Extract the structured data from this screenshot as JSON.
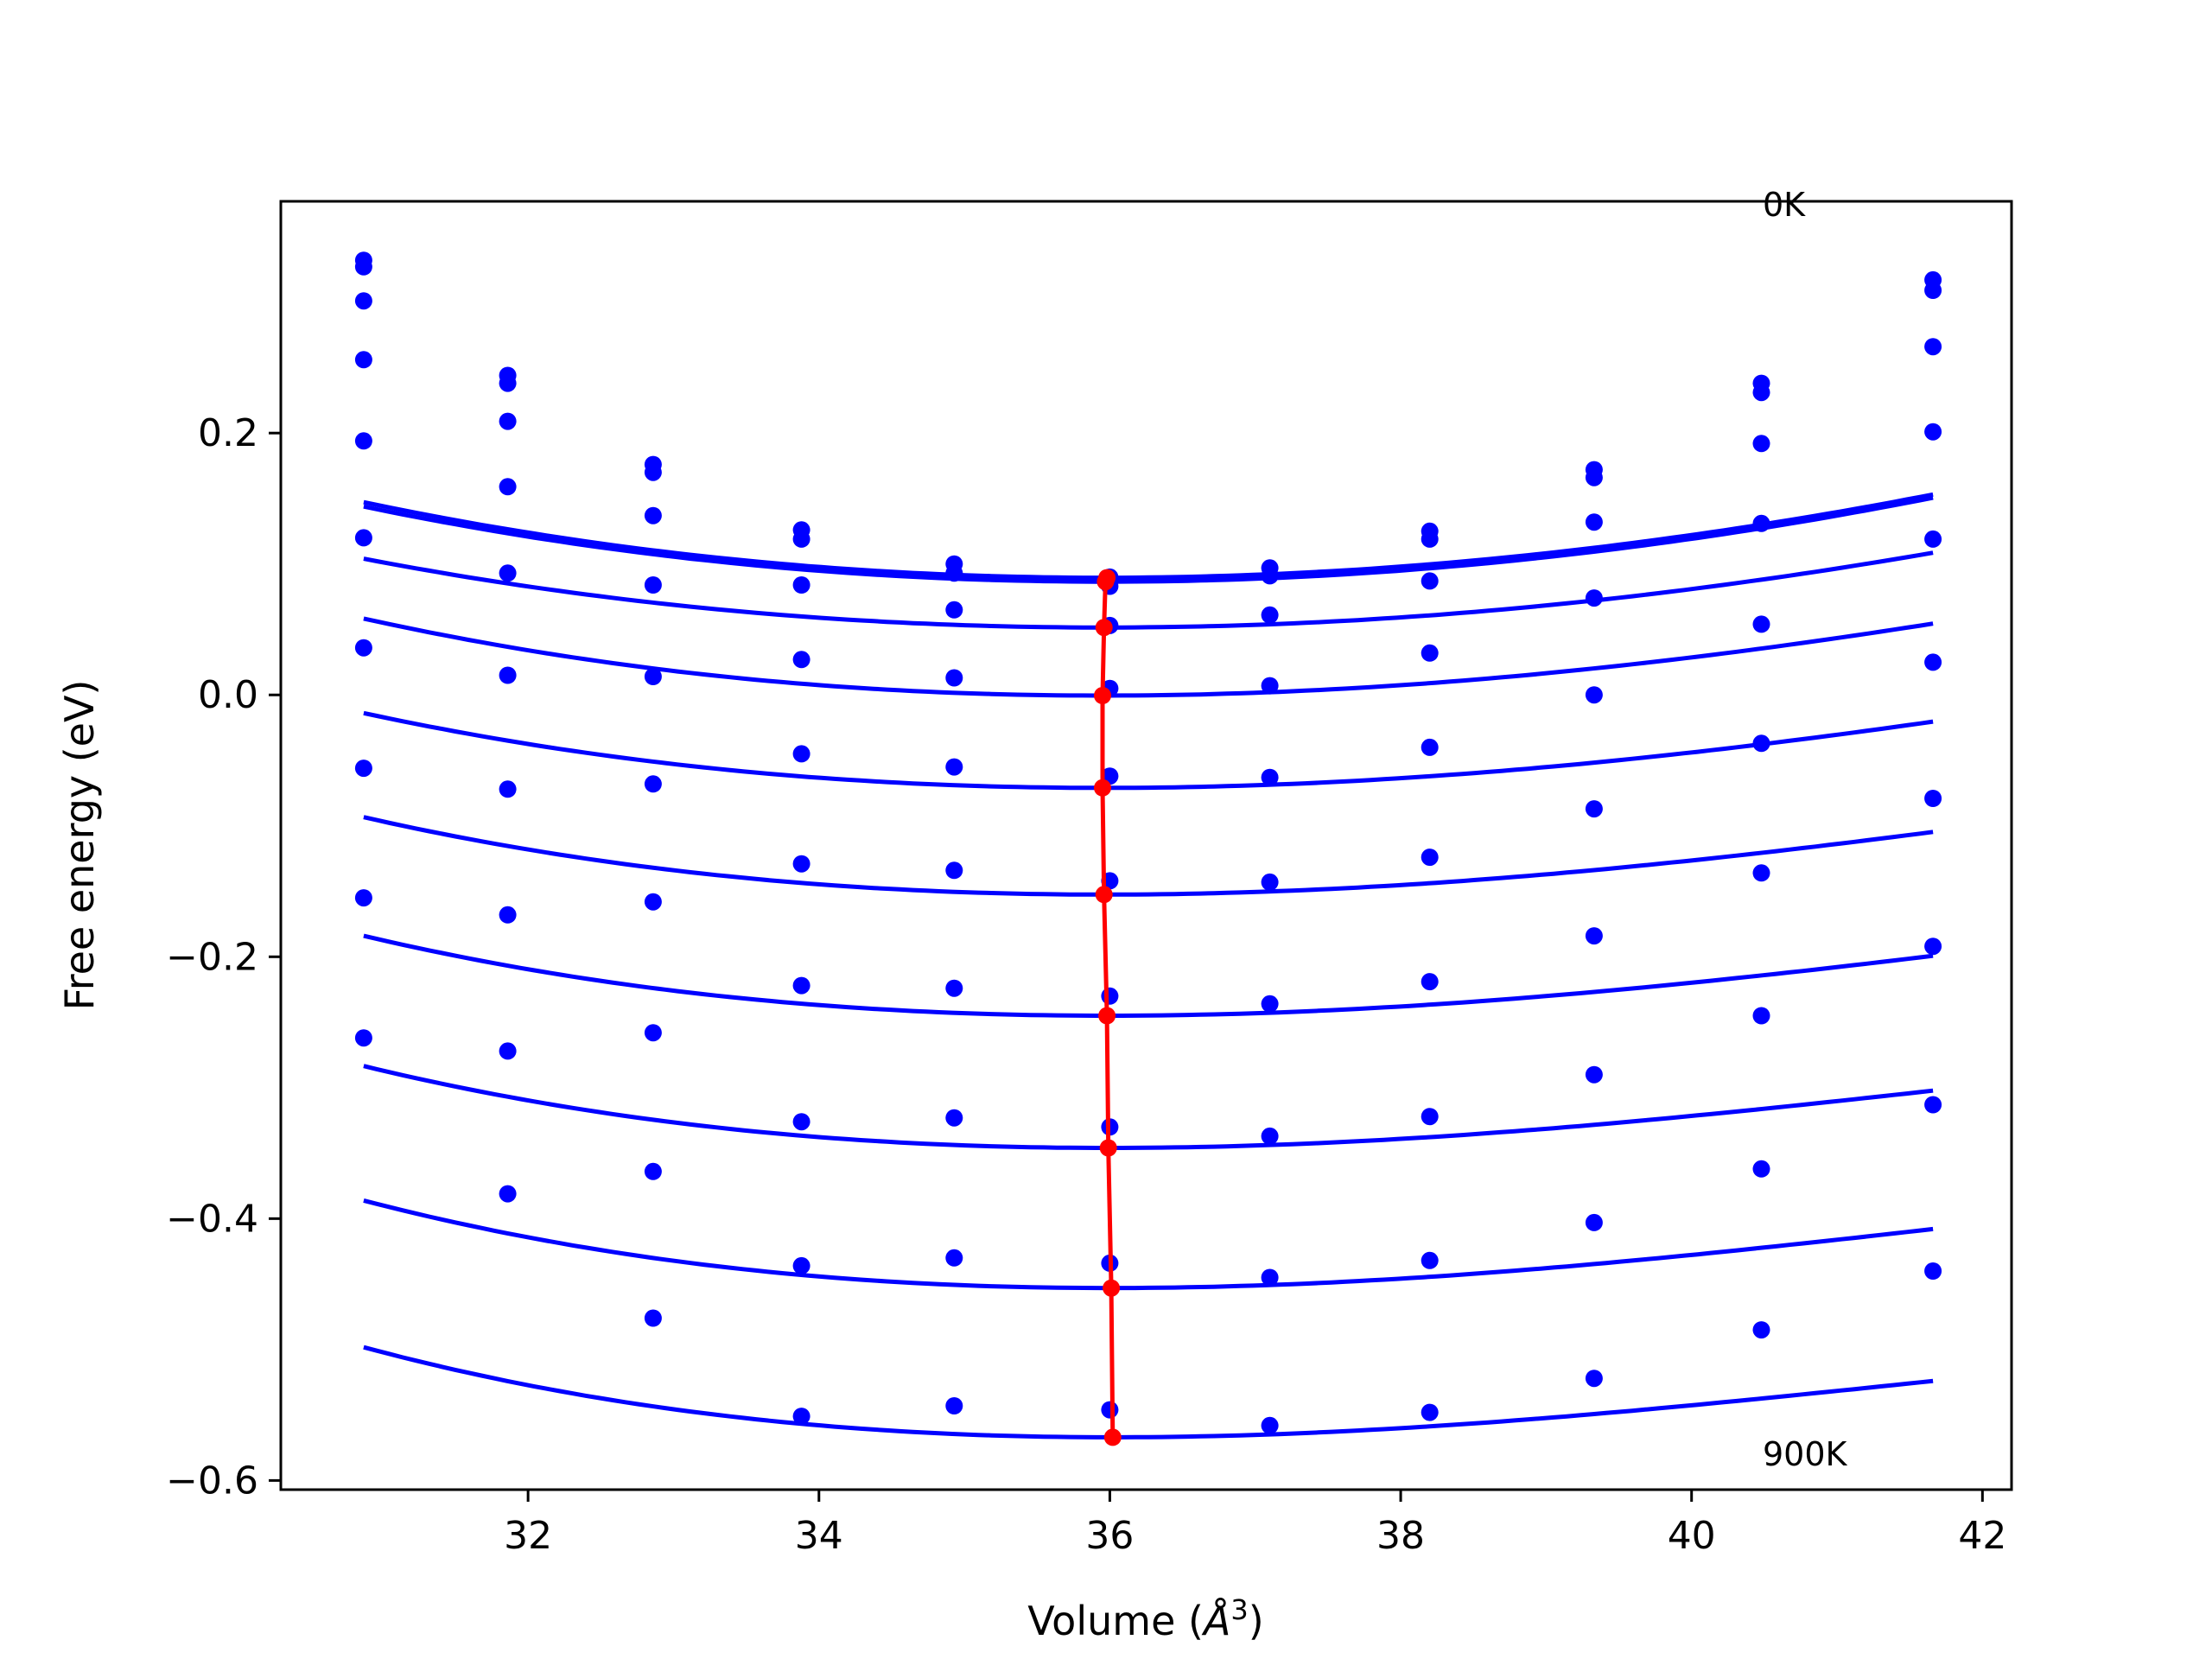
{
  "chart_data": {
    "type": "line",
    "title": "",
    "xlabel": "Volume (Å³)",
    "xlabel_text": "Volume (",
    "xlabel_unit_base": "Å",
    "xlabel_unit_exp": "3",
    "xlabel_close": ")",
    "ylabel": "Free energy (eV)",
    "xlim": [
      30.3,
      42.2
    ],
    "ylim": [
      -0.607,
      0.377
    ],
    "xticks": [
      32,
      34,
      36,
      38,
      40,
      42
    ],
    "yticks": [
      -0.6,
      -0.4,
      -0.2,
      0.0,
      0.2
    ],
    "ytick_labels": [
      "−0.6",
      "−0.4",
      "−0.2",
      "0.0",
      "0.2"
    ],
    "xtick_labels": [
      "32",
      "34",
      "36",
      "38",
      "40",
      "42"
    ],
    "grid": false,
    "annotations": [
      {
        "text": "0K",
        "x": 40.5,
        "y": 0.37
      },
      {
        "text": "900K",
        "x": 40.5,
        "y": -0.585
      }
    ],
    "colors": {
      "curves": "#0000ff",
      "minima": "#ff0000",
      "axes": "#000000"
    },
    "volumes": [
      30.87,
      31.86,
      32.86,
      33.88,
      34.93,
      36.0,
      37.1,
      38.2,
      39.33,
      40.48,
      41.66
    ],
    "series": [
      {
        "fit": {
          "a": 0.0021,
          "v0": 35.96,
          "c": 0.0895,
          "b": -0.0025
        },
        "points": [
          0.332,
          0.244,
          0.176,
          0.126,
          0.1,
          0.09,
          0.097,
          0.125,
          0.172,
          0.238,
          0.317
        ]
      },
      {
        "fit": {
          "a": 0.0021,
          "v0": 35.97,
          "c": 0.0865,
          "b": -0.0021
        },
        "points": [
          0.327,
          0.238,
          0.17,
          0.119,
          0.093,
          0.083,
          0.091,
          0.119,
          0.166,
          0.231,
          0.309
        ]
      },
      {
        "fit": {
          "a": 0.0019,
          "v0": 35.96,
          "c": 0.0515,
          "b": -0.0025
        },
        "points": [
          0.301,
          0.209,
          0.137,
          0.084,
          0.065,
          0.053,
          0.061,
          0.087,
          0.132,
          0.192,
          0.266
        ]
      },
      {
        "fit": {
          "a": 0.002,
          "v0": 35.95,
          "c": -0.0005,
          "b": -0.0055
        },
        "points": [
          0.256,
          0.159,
          0.084,
          0.027,
          0.013,
          0.005,
          0.007,
          0.032,
          0.074,
          0.131,
          0.201
        ]
      },
      {
        "fit": {
          "a": 0.0019,
          "v0": 35.96,
          "c": -0.071,
          "b": -0.006
        },
        "points": [
          0.194,
          0.093,
          0.014,
          -0.045,
          -0.055,
          -0.062,
          -0.063,
          -0.04,
          0.0,
          0.054,
          0.119
        ]
      },
      {
        "fit": {
          "a": 0.0019,
          "v0": 35.96,
          "c": -0.1525,
          "b": -0.0075
        },
        "points": [
          0.12,
          0.015,
          -0.068,
          -0.129,
          -0.134,
          -0.142,
          -0.143,
          -0.124,
          -0.087,
          -0.037,
          0.025
        ]
      },
      {
        "fit": {
          "a": 0.0019,
          "v0": 35.98,
          "c": -0.245,
          "b": -0.0085
        },
        "points": [
          0.036,
          -0.072,
          -0.158,
          -0.222,
          -0.224,
          -0.23,
          -0.236,
          -0.219,
          -0.184,
          -0.136,
          -0.079
        ]
      },
      {
        "fit": {
          "a": 0.0019,
          "v0": 35.99,
          "c": -0.346,
          "b": -0.0095
        },
        "points": [
          -0.056,
          -0.168,
          -0.258,
          -0.326,
          -0.323,
          -0.33,
          -0.337,
          -0.322,
          -0.29,
          -0.245,
          -0.192
        ]
      },
      {
        "fit": {
          "a": 0.002,
          "v0": 36.0,
          "c": -0.453,
          "b": -0.0105
        },
        "points": [
          -0.155,
          -0.272,
          -0.364,
          -0.436,
          -0.43,
          -0.434,
          -0.445,
          -0.432,
          -0.403,
          -0.362,
          -0.313
        ]
      },
      {
        "fit": {
          "a": 0.002,
          "v0": 36.02,
          "c": -0.567,
          "b": -0.0115
        },
        "points": [
          -0.262,
          -0.381,
          -0.476,
          -0.551,
          -0.543,
          -0.546,
          -0.558,
          -0.548,
          -0.522,
          -0.485,
          -0.44
        ]
      }
    ],
    "minima": {
      "name": "",
      "x": [
        35.98,
        35.97,
        35.96,
        35.95,
        35.95,
        35.96,
        35.98,
        35.99,
        36.01,
        36.02
      ],
      "y": [
        0.0895,
        0.0865,
        0.0515,
        -0.0005,
        -0.071,
        -0.1525,
        -0.245,
        -0.346,
        -0.453,
        -0.567
      ]
    }
  }
}
